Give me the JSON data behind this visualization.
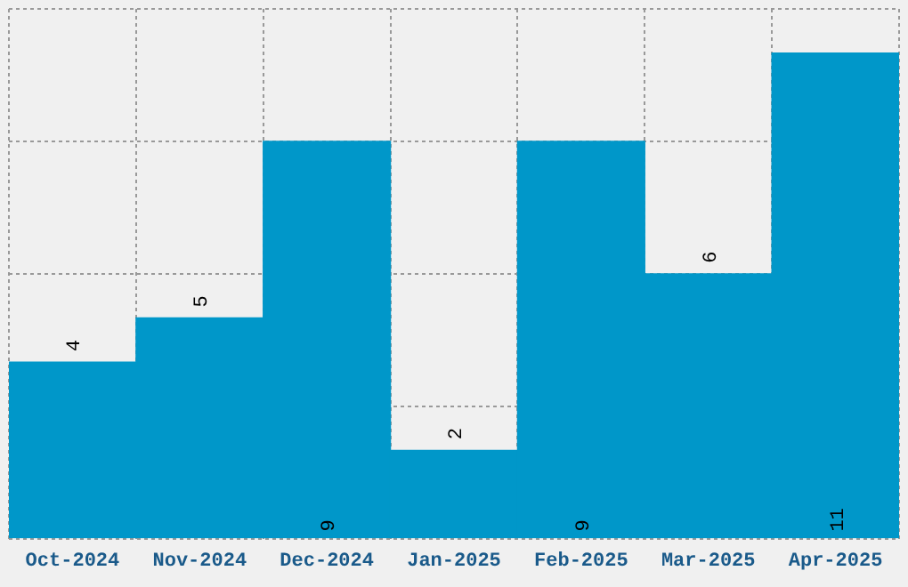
{
  "chart_data": {
    "type": "bar",
    "categories": [
      "Oct-2024",
      "Nov-2024",
      "Dec-2024",
      "Jan-2025",
      "Feb-2025",
      "Mar-2025",
      "Apr-2025"
    ],
    "values": [
      4,
      5,
      9,
      2,
      9,
      6,
      11
    ],
    "color": "#0097c9",
    "ylim": [
      0,
      12
    ],
    "yticks": [
      {
        "value": 0,
        "label": null
      },
      {
        "value": 3,
        "label": null
      },
      {
        "value": 6,
        "label": null
      },
      {
        "value": 9,
        "label": null
      },
      {
        "value": 12,
        "label": null
      }
    ],
    "tick_labels": "x",
    "grid": true,
    "data_labels": true
  }
}
